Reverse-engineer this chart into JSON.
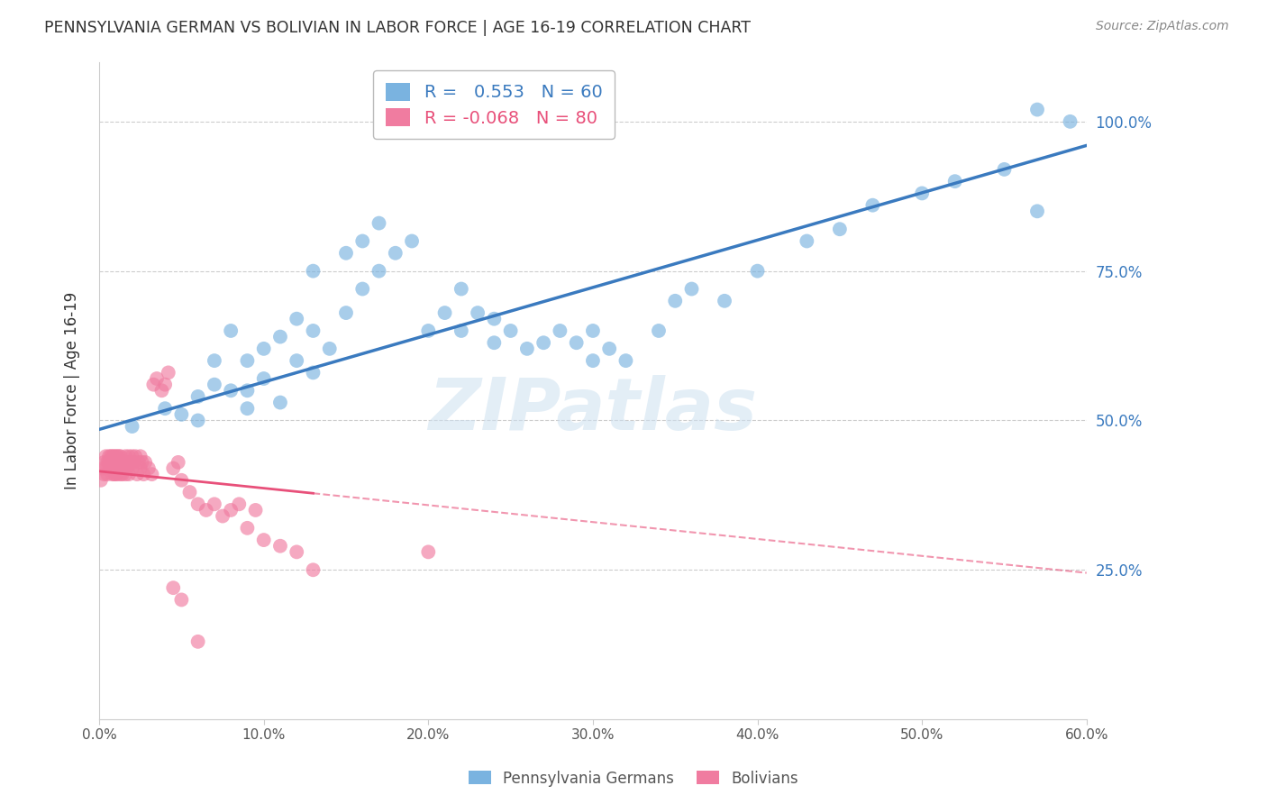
{
  "title": "PENNSYLVANIA GERMAN VS BOLIVIAN IN LABOR FORCE | AGE 16-19 CORRELATION CHART",
  "source": "Source: ZipAtlas.com",
  "ylabel": "In Labor Force | Age 16-19",
  "xlim": [
    0.0,
    0.6
  ],
  "ylim": [
    0.0,
    1.1
  ],
  "xticks": [
    0.0,
    0.1,
    0.2,
    0.3,
    0.4,
    0.5,
    0.6
  ],
  "xticklabels": [
    "0.0%",
    "10.0%",
    "20.0%",
    "30.0%",
    "40.0%",
    "50.0%",
    "60.0%"
  ],
  "yticks": [
    0.25,
    0.5,
    0.75,
    1.0
  ],
  "yticklabels": [
    "25.0%",
    "50.0%",
    "75.0%",
    "100.0%"
  ],
  "legend_labels": [
    "Pennsylvania Germans",
    "Bolivians"
  ],
  "blue_R": 0.553,
  "blue_N": 60,
  "pink_R": -0.068,
  "pink_N": 80,
  "blue_color": "#7ab3e0",
  "pink_color": "#f07ca0",
  "blue_line_color": "#3a7abf",
  "pink_line_color": "#e8507a",
  "grid_color": "#cccccc",
  "axis_label_color": "#3a7abf",
  "title_color": "#333333",
  "watermark": "ZIPatlas",
  "blue_line_x0": 0.0,
  "blue_line_y0": 0.485,
  "blue_line_x1": 0.6,
  "blue_line_y1": 0.96,
  "pink_line_x0": 0.0,
  "pink_line_y0": 0.415,
  "pink_line_x1": 0.6,
  "pink_line_y1": 0.245,
  "blue_scatter_x": [
    0.02,
    0.04,
    0.05,
    0.06,
    0.06,
    0.07,
    0.07,
    0.08,
    0.08,
    0.09,
    0.09,
    0.09,
    0.1,
    0.1,
    0.11,
    0.11,
    0.12,
    0.12,
    0.13,
    0.13,
    0.13,
    0.14,
    0.15,
    0.15,
    0.16,
    0.16,
    0.17,
    0.17,
    0.18,
    0.19,
    0.2,
    0.21,
    0.22,
    0.22,
    0.23,
    0.24,
    0.24,
    0.25,
    0.26,
    0.27,
    0.28,
    0.29,
    0.3,
    0.3,
    0.31,
    0.32,
    0.34,
    0.35,
    0.36,
    0.38,
    0.4,
    0.43,
    0.45,
    0.47,
    0.5,
    0.52,
    0.55,
    0.57,
    0.57,
    0.59
  ],
  "blue_scatter_y": [
    0.49,
    0.52,
    0.51,
    0.5,
    0.54,
    0.56,
    0.6,
    0.55,
    0.65,
    0.52,
    0.55,
    0.6,
    0.57,
    0.62,
    0.53,
    0.64,
    0.6,
    0.67,
    0.58,
    0.65,
    0.75,
    0.62,
    0.68,
    0.78,
    0.72,
    0.8,
    0.75,
    0.83,
    0.78,
    0.8,
    0.65,
    0.68,
    0.65,
    0.72,
    0.68,
    0.63,
    0.67,
    0.65,
    0.62,
    0.63,
    0.65,
    0.63,
    0.6,
    0.65,
    0.62,
    0.6,
    0.65,
    0.7,
    0.72,
    0.7,
    0.75,
    0.8,
    0.82,
    0.86,
    0.88,
    0.9,
    0.92,
    0.85,
    1.02,
    1.0
  ],
  "pink_scatter_x": [
    0.001,
    0.002,
    0.003,
    0.003,
    0.004,
    0.004,
    0.005,
    0.005,
    0.006,
    0.006,
    0.007,
    0.007,
    0.008,
    0.008,
    0.008,
    0.009,
    0.009,
    0.009,
    0.01,
    0.01,
    0.01,
    0.01,
    0.011,
    0.011,
    0.011,
    0.012,
    0.012,
    0.012,
    0.013,
    0.013,
    0.013,
    0.014,
    0.014,
    0.015,
    0.015,
    0.016,
    0.016,
    0.017,
    0.017,
    0.018,
    0.018,
    0.019,
    0.02,
    0.02,
    0.021,
    0.022,
    0.023,
    0.024,
    0.025,
    0.025,
    0.026,
    0.027,
    0.028,
    0.03,
    0.032,
    0.033,
    0.035,
    0.038,
    0.04,
    0.042,
    0.045,
    0.048,
    0.05,
    0.055,
    0.06,
    0.065,
    0.07,
    0.075,
    0.08,
    0.085,
    0.09,
    0.095,
    0.1,
    0.11,
    0.12,
    0.13,
    0.045,
    0.05,
    0.06,
    0.2
  ],
  "pink_scatter_y": [
    0.4,
    0.42,
    0.43,
    0.41,
    0.44,
    0.42,
    0.43,
    0.41,
    0.44,
    0.43,
    0.42,
    0.44,
    0.41,
    0.44,
    0.43,
    0.42,
    0.44,
    0.41,
    0.42,
    0.44,
    0.43,
    0.41,
    0.44,
    0.42,
    0.41,
    0.44,
    0.43,
    0.42,
    0.41,
    0.44,
    0.43,
    0.42,
    0.41,
    0.43,
    0.42,
    0.44,
    0.41,
    0.43,
    0.42,
    0.44,
    0.41,
    0.43,
    0.44,
    0.42,
    0.43,
    0.44,
    0.41,
    0.43,
    0.44,
    0.42,
    0.43,
    0.41,
    0.43,
    0.42,
    0.41,
    0.56,
    0.57,
    0.55,
    0.56,
    0.58,
    0.42,
    0.43,
    0.4,
    0.38,
    0.36,
    0.35,
    0.36,
    0.34,
    0.35,
    0.36,
    0.32,
    0.35,
    0.3,
    0.29,
    0.28,
    0.25,
    0.22,
    0.2,
    0.13,
    0.28
  ]
}
